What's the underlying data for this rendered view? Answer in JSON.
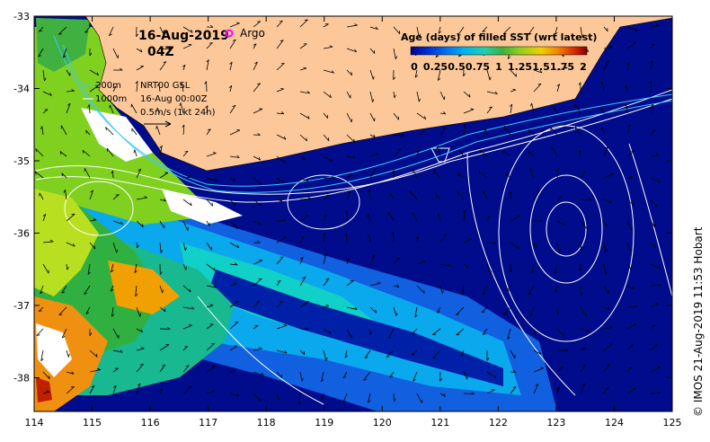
{
  "header": {
    "date": "16-Aug-2019",
    "time": "04Z",
    "argo_label": "Argo"
  },
  "colorbar": {
    "title": "Age (days) of filled SST (wrt latest)",
    "ticks": [
      "0",
      "0.25",
      "0.5",
      "0.75",
      "1",
      "1.25",
      "1.5",
      "1.75",
      "2"
    ],
    "colors": [
      "#000090",
      "#0030d0",
      "#0070f0",
      "#00b0f0",
      "#20d0b0",
      "#40b040",
      "#90d020",
      "#f0d000",
      "#f08000",
      "#d02000",
      "#800000"
    ]
  },
  "legend": {
    "depth_200": "200m",
    "depth_1000": "1000m",
    "product": "NRT00 GSL",
    "product_time": "16-Aug 00:00Z",
    "arrow_scale": "0.5m/s (1kt 24h)"
  },
  "axes": {
    "x_ticks": [
      "114",
      "115",
      "116",
      "117",
      "118",
      "119",
      "120",
      "121",
      "122",
      "123",
      "124",
      "125"
    ],
    "y_ticks": [
      "-33",
      "-34",
      "-35",
      "-36",
      "-37",
      "-38"
    ]
  },
  "credit": "© IMOS 21-Aug-2019 11:53 Hobart",
  "colors": {
    "ocean": "#000c8c",
    "land": "#fcc89a",
    "argo": "#ff00ff"
  }
}
